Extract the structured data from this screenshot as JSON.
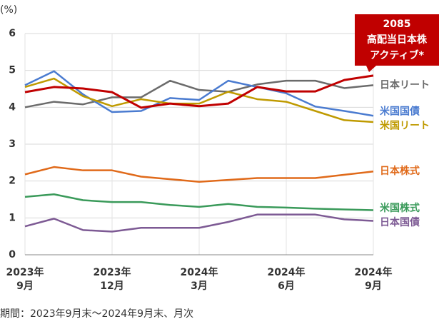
{
  "chart_data": {
    "type": "line",
    "y_label": "(%)",
    "footnote": "期間：2023年9月末～2024年9月末、月次",
    "categories": [
      [
        "2023年",
        "9月"
      ],
      null,
      null,
      [
        "2023年",
        "12月"
      ],
      null,
      null,
      [
        "2024年",
        "3月"
      ],
      null,
      null,
      [
        "2024年",
        "6月"
      ],
      null,
      null,
      [
        "2024年",
        "9月"
      ]
    ],
    "ylim": [
      0,
      6
    ],
    "yticks": [
      0,
      1,
      2,
      3,
      4,
      5,
      6
    ],
    "grid": true,
    "series": [
      {
        "name": "日本リート",
        "color": "#6b6b6b",
        "values": [
          4.0,
          4.15,
          4.08,
          4.27,
          4.27,
          4.72,
          4.47,
          4.42,
          4.62,
          4.72,
          4.72,
          4.52,
          4.6
        ]
      },
      {
        "name": "米国国債",
        "color": "#4a7bd0",
        "values": [
          4.6,
          4.98,
          4.35,
          3.87,
          3.9,
          4.25,
          4.2,
          4.72,
          4.55,
          4.38,
          4.02,
          3.9,
          3.77
        ]
      },
      {
        "name": "米国リート",
        "color": "#bf9a00",
        "values": [
          4.55,
          4.78,
          4.3,
          4.03,
          4.22,
          4.1,
          4.1,
          4.42,
          4.22,
          4.15,
          3.9,
          3.65,
          3.6
        ]
      },
      {
        "name": "日本株式",
        "color": "#e06a1a",
        "values": [
          2.18,
          2.38,
          2.29,
          2.29,
          2.12,
          2.05,
          1.98,
          2.03,
          2.08,
          2.08,
          2.08,
          2.17,
          2.26
        ]
      },
      {
        "name": "米国株式",
        "color": "#3a9a5a",
        "values": [
          1.57,
          1.64,
          1.48,
          1.43,
          1.43,
          1.35,
          1.3,
          1.38,
          1.3,
          1.28,
          1.25,
          1.23,
          1.21
        ]
      },
      {
        "name": "日本国債",
        "color": "#7d5a94",
        "values": [
          0.77,
          0.98,
          0.67,
          0.63,
          0.73,
          0.73,
          0.73,
          0.89,
          1.09,
          1.09,
          1.09,
          0.96,
          0.92
        ]
      },
      {
        "name": [
          "2085",
          "高配当日本株",
          "アクティブ*"
        ],
        "color": "#c00000",
        "values": [
          4.41,
          4.55,
          4.51,
          4.41,
          3.99,
          4.1,
          4.03,
          4.1,
          4.55,
          4.43,
          4.43,
          4.74,
          4.86
        ]
      }
    ]
  }
}
